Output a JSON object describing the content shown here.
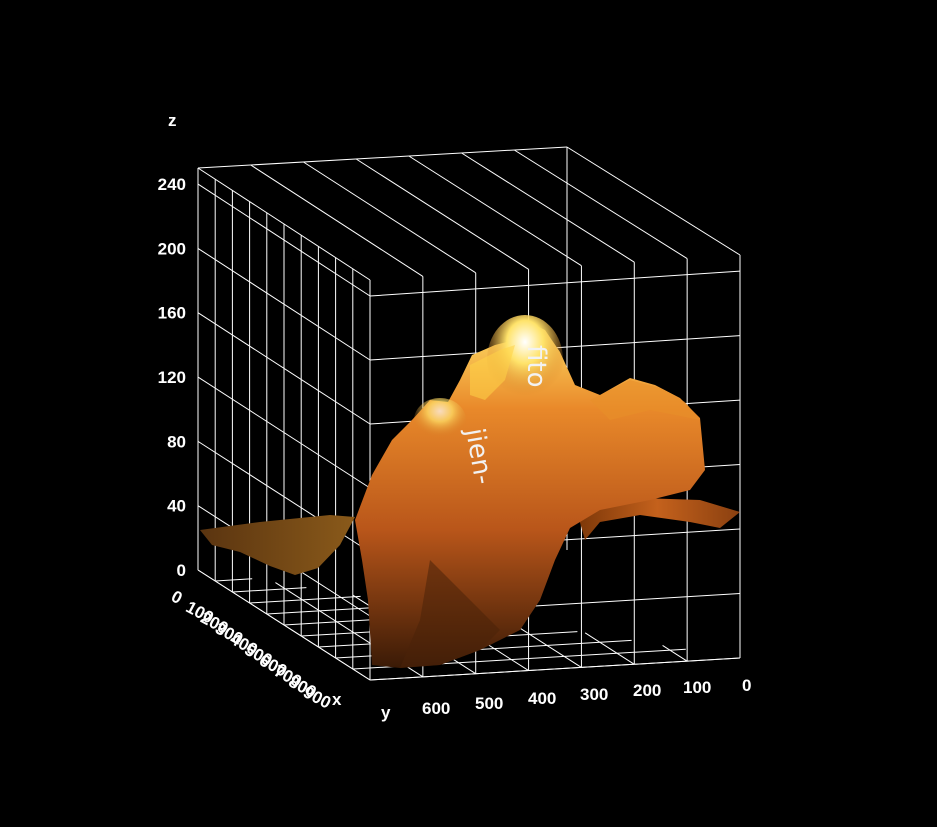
{
  "chart_data": {
    "type": "surface3d",
    "xlabel": "x",
    "ylabel": "y",
    "zlabel": "z",
    "x_ticks": [
      "0",
      "100",
      "200",
      "300",
      "400",
      "500",
      "600",
      "700",
      "800",
      "900"
    ],
    "y_ticks": [
      "600",
      "500",
      "400",
      "300",
      "200",
      "100",
      "0"
    ],
    "z_ticks": [
      "0",
      "40",
      "80",
      "120",
      "160",
      "200",
      "240"
    ],
    "xlim": [
      0,
      900
    ],
    "ylim": [
      0,
      700
    ],
    "zlim": [
      0,
      250
    ],
    "grid": true,
    "background": "#000000",
    "colors": {
      "surface_dark": "#5a2a08",
      "surface_mid": "#c8651a",
      "surface_light": "#f3b23a",
      "surface_peak": "#ffe870"
    },
    "surface_texture_text": [
      "fito",
      "jien-"
    ]
  }
}
